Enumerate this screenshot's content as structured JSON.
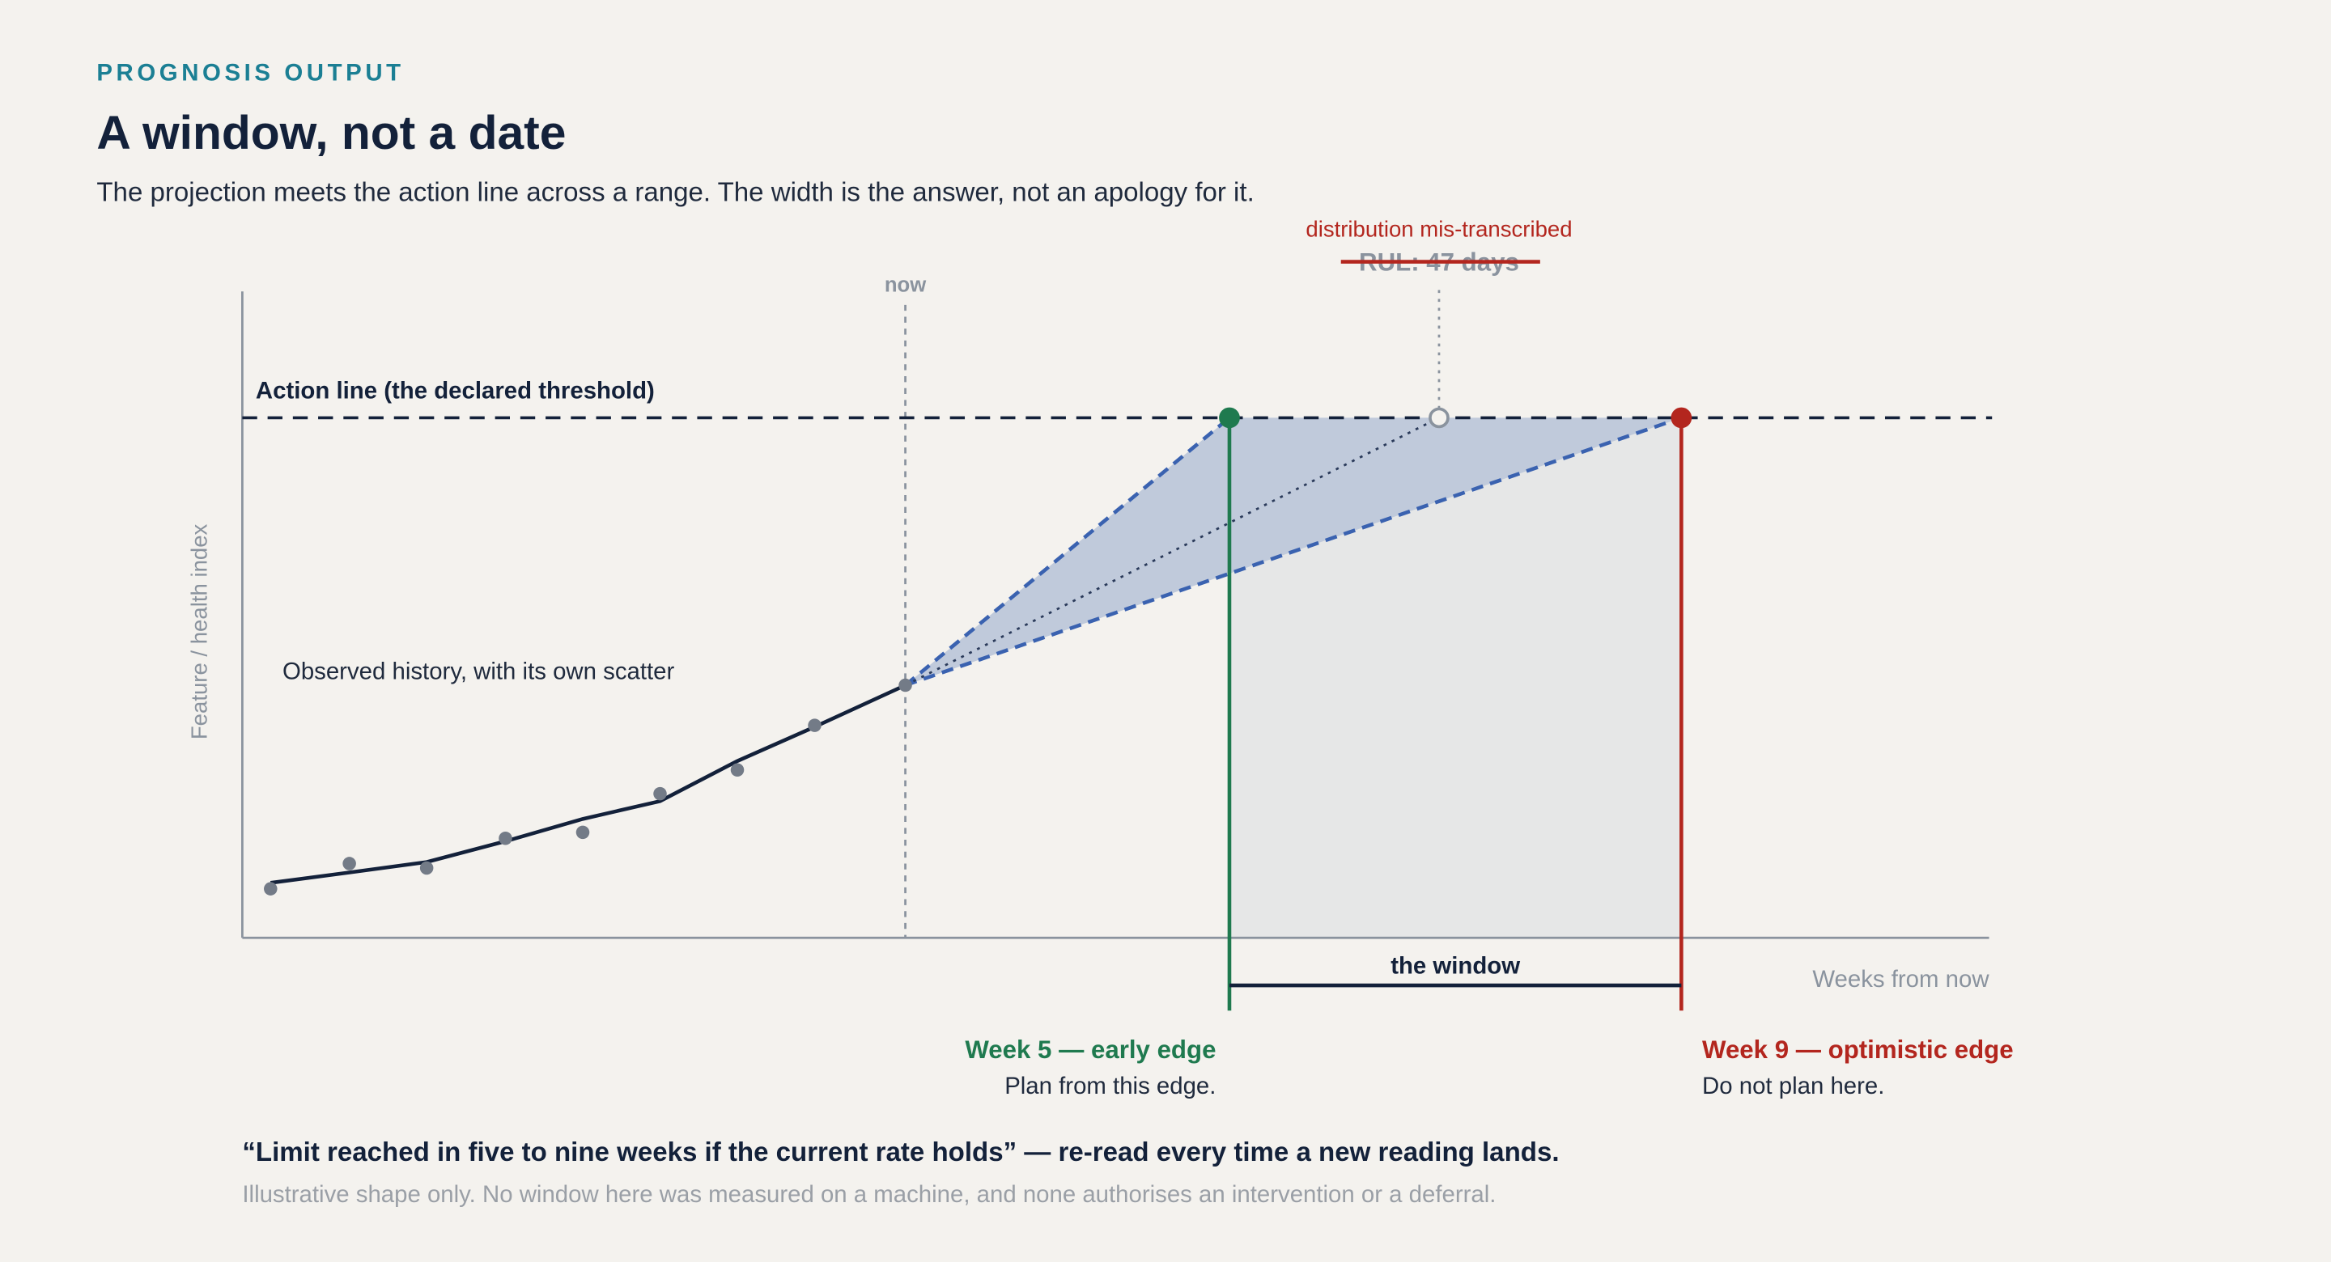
{
  "header": {
    "eyebrow": "PROGNOSIS OUTPUT",
    "title": "A window, not a date",
    "subtitle": "The projection meets the action line across a range. The width is the answer, not an apology for it."
  },
  "chart": {
    "now_label": "now",
    "correction_note": "distribution mis-transcribed",
    "struck_estimate": "RUL: 47 days",
    "action_line_label": "Action line (the declared threshold)",
    "y_axis_label": "Feature / health index",
    "history_label": "Observed history, with its own scatter",
    "window_label": "the window",
    "x_axis_label": "Weeks from now",
    "early_edge": {
      "title": "Week 5 — early edge",
      "note": "Plan from this edge."
    },
    "optimistic_edge": {
      "title": "Week 9 — optimistic edge",
      "note": "Do not plan here."
    }
  },
  "footer": {
    "quote": "“Limit reached in five to nine weeks if the current rate holds” — re-read every time a new reading lands.",
    "disclaimer": "Illustrative shape only. No window here was measured on a machine, and none authorises an intervention or a deferral."
  }
}
